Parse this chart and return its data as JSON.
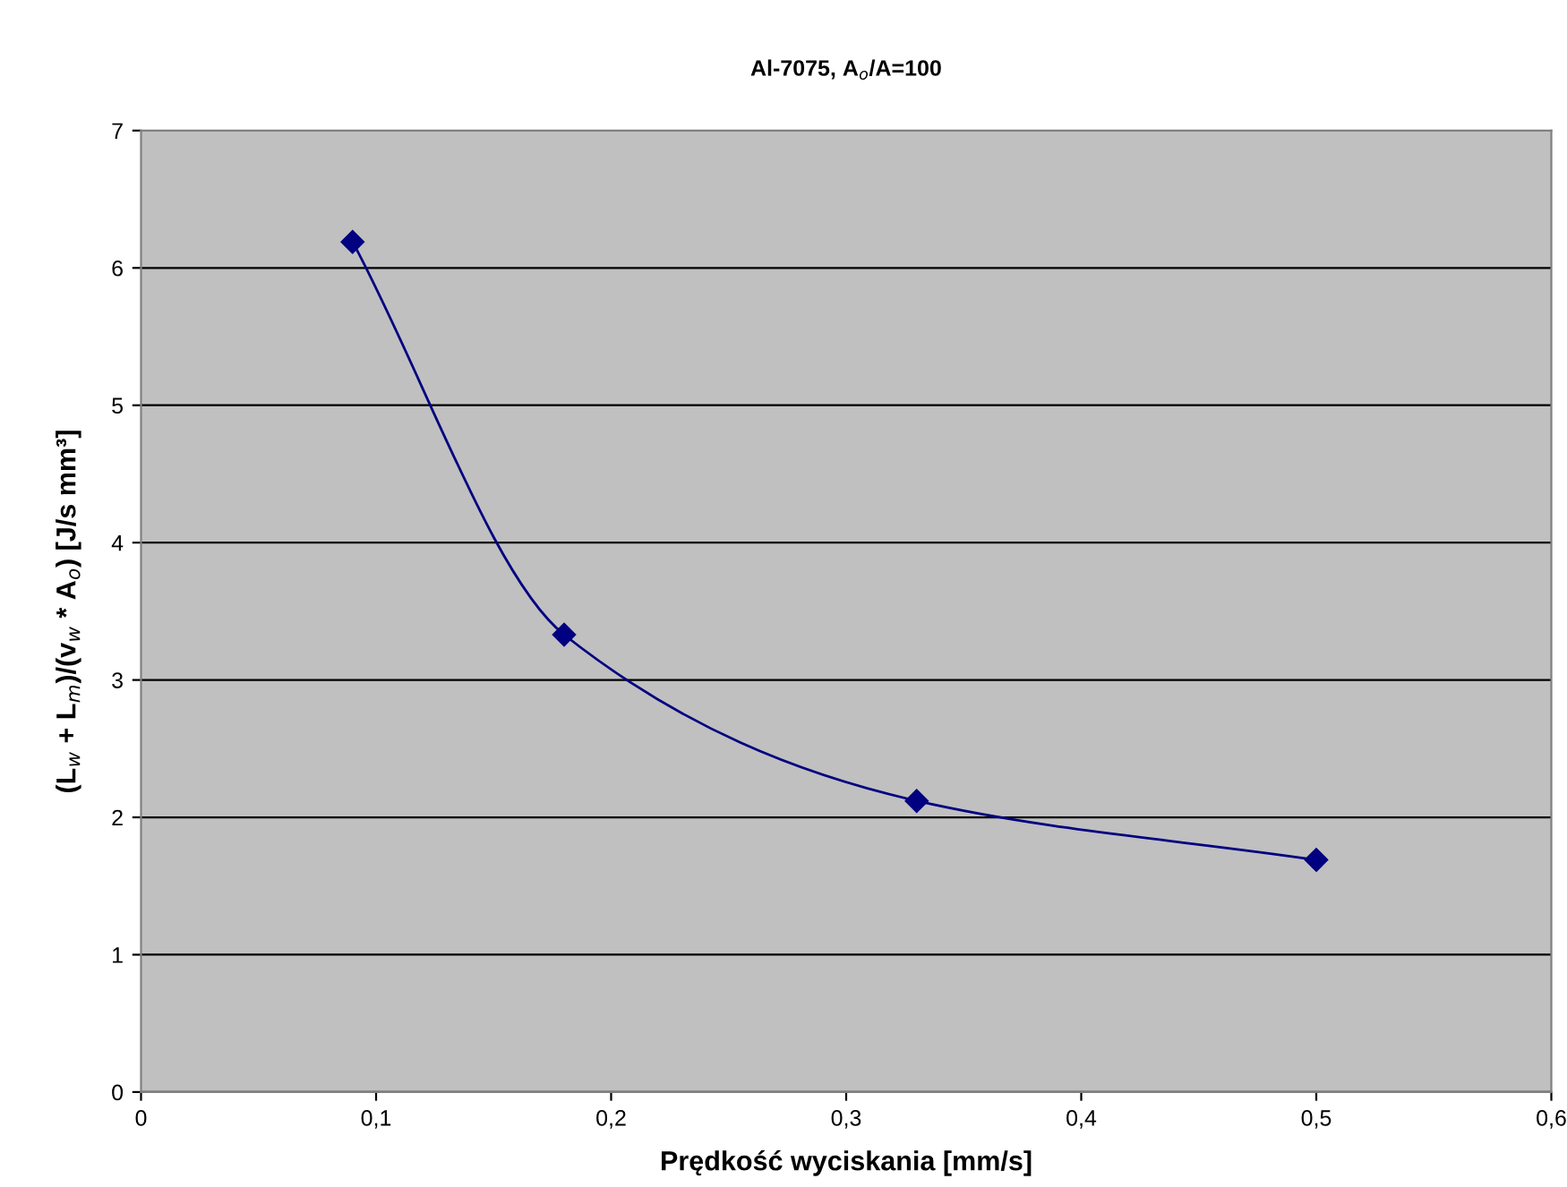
{
  "chart_data": {
    "type": "line",
    "title": "Al-7075, A$_{o}$/A=100",
    "xlabel": "Prędkość wyciskania [mm/s]",
    "ylabel": "(L$_{w}$ + L$_{m}$)/(v$_{w}$ * A$_{o}$) [J/s mm³]",
    "x": [
      0.09,
      0.18,
      0.33,
      0.5
    ],
    "series": [
      {
        "color": "#000080",
        "values": [
          6.19,
          3.33,
          2.12,
          1.69
        ]
      }
    ],
    "xlim": [
      0,
      0.6
    ],
    "xticks": [
      0,
      {
        "value": 0.1,
        "label": "0,1"
      },
      {
        "value": 0.2,
        "label": "0,2"
      },
      {
        "value": 0.3,
        "label": "0,3"
      },
      {
        "value": 0.4,
        "label": "0,4"
      },
      {
        "value": 0.5,
        "label": "0,5"
      },
      {
        "value": 0.6,
        "label": "0,6"
      }
    ],
    "ylim": [
      0,
      7
    ],
    "yticks": [
      0,
      1,
      2,
      3,
      4,
      5,
      6,
      7
    ],
    "grid": "y",
    "marker": "diamond",
    "line_style": "solid"
  }
}
